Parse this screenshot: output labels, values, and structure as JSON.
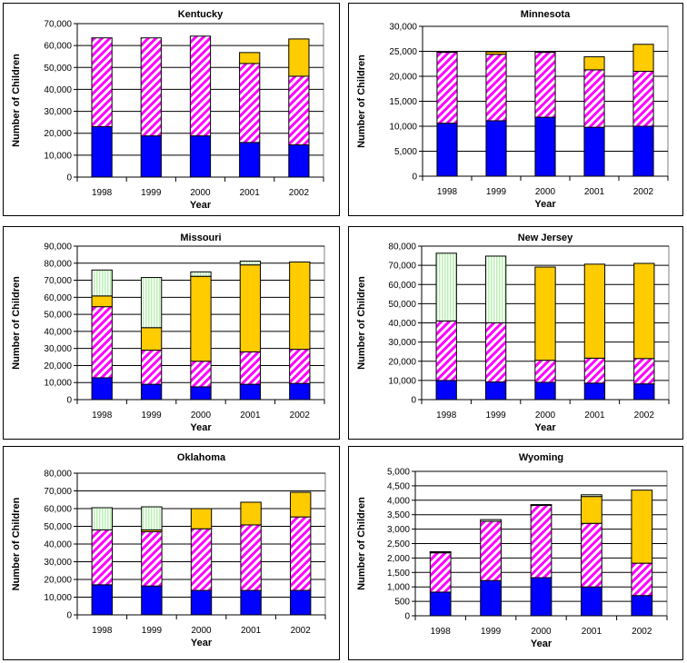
{
  "colors": {
    "series1": "#0000FF",
    "series2": "#FF00FF",
    "series3": "#FFCC00",
    "series4": "#CCFFCC"
  },
  "chart_data": [
    {
      "type": "bar",
      "stacked": true,
      "title": "Kentucky",
      "xlabel": "Year",
      "ylabel": "Number of Children",
      "categories": [
        "1998",
        "1999",
        "2000",
        "2001",
        "2002"
      ],
      "ylim": [
        0,
        70000
      ],
      "yticks": [
        0,
        10000,
        20000,
        30000,
        40000,
        50000,
        60000,
        70000
      ],
      "grid": true,
      "series": [
        {
          "values": [
            23000,
            18800,
            18800,
            15800,
            14700
          ]
        },
        {
          "values": [
            40500,
            44700,
            45500,
            36000,
            31300
          ]
        },
        {
          "values": [
            0,
            0,
            0,
            5000,
            17000
          ]
        },
        {
          "values": [
            0,
            0,
            0,
            0,
            0
          ]
        }
      ]
    },
    {
      "type": "bar",
      "stacked": true,
      "title": "Minnesota",
      "xlabel": "Year",
      "ylabel": "Number of Children",
      "categories": [
        "1998",
        "1999",
        "2000",
        "2001",
        "2002"
      ],
      "ylim": [
        0,
        30000
      ],
      "yticks": [
        0,
        5000,
        10000,
        15000,
        20000,
        25000,
        30000
      ],
      "grid": true,
      "series": [
        {
          "values": [
            10600,
            11100,
            11800,
            9800,
            10000
          ]
        },
        {
          "values": [
            14200,
            13300,
            13000,
            11500,
            11000
          ]
        },
        {
          "values": [
            100,
            500,
            100,
            2600,
            5400
          ]
        },
        {
          "values": [
            0,
            0,
            0,
            0,
            0
          ]
        }
      ]
    },
    {
      "type": "bar",
      "stacked": true,
      "title": "Missouri",
      "xlabel": "Year",
      "ylabel": "Number of Children",
      "categories": [
        "1998",
        "1999",
        "2000",
        "2001",
        "2002"
      ],
      "ylim": [
        0,
        90000
      ],
      "yticks": [
        0,
        10000,
        20000,
        30000,
        40000,
        50000,
        60000,
        70000,
        80000,
        90000
      ],
      "grid": true,
      "series": [
        {
          "values": [
            12800,
            9000,
            7500,
            9000,
            9500
          ]
        },
        {
          "values": [
            41700,
            20000,
            15000,
            19000,
            20000
          ]
        },
        {
          "values": [
            6300,
            13200,
            49800,
            51000,
            51200
          ]
        },
        {
          "values": [
            15200,
            29400,
            2600,
            2200,
            0
          ]
        }
      ]
    },
    {
      "type": "bar",
      "stacked": true,
      "title": "New Jersey",
      "xlabel": "Year",
      "ylabel": "Number of Children",
      "categories": [
        "1998",
        "1999",
        "2000",
        "2001",
        "2002"
      ],
      "ylim": [
        0,
        80000
      ],
      "yticks": [
        0,
        10000,
        20000,
        30000,
        40000,
        50000,
        60000,
        70000,
        80000
      ],
      "grid": true,
      "series": [
        {
          "values": [
            10000,
            9200,
            9000,
            8600,
            8200
          ]
        },
        {
          "values": [
            31000,
            30800,
            11500,
            13000,
            13200
          ]
        },
        {
          "values": [
            0,
            0,
            48600,
            49000,
            49600
          ]
        },
        {
          "values": [
            35300,
            34800,
            0,
            0,
            0
          ]
        }
      ]
    },
    {
      "type": "bar",
      "stacked": true,
      "title": "Oklahoma",
      "xlabel": "Year",
      "ylabel": "Number of Children",
      "categories": [
        "1998",
        "1999",
        "2000",
        "2001",
        "2002"
      ],
      "ylim": [
        0,
        80000
      ],
      "yticks": [
        0,
        10000,
        20000,
        30000,
        40000,
        50000,
        60000,
        70000,
        80000
      ],
      "grid": true,
      "series": [
        {
          "values": [
            17000,
            16300,
            13800,
            13800,
            13800
          ]
        },
        {
          "values": [
            31000,
            30700,
            34800,
            37000,
            41500
          ]
        },
        {
          "values": [
            0,
            1000,
            11400,
            12800,
            13900
          ]
        },
        {
          "values": [
            12500,
            13000,
            0,
            0,
            0
          ]
        }
      ]
    },
    {
      "type": "bar",
      "stacked": true,
      "title": "Wyoming",
      "xlabel": "Year",
      "ylabel": "Number of Children",
      "categories": [
        "1998",
        "1999",
        "2000",
        "2001",
        "2002"
      ],
      "ylim": [
        0,
        5000
      ],
      "yticks": [
        0,
        500,
        1000,
        1500,
        2000,
        2500,
        3000,
        3500,
        4000,
        4500,
        5000
      ],
      "grid": true,
      "series": [
        {
          "values": [
            820,
            1220,
            1320,
            1000,
            700
          ]
        },
        {
          "values": [
            1360,
            2050,
            2500,
            2200,
            1120
          ]
        },
        {
          "values": [
            30,
            0,
            30,
            930,
            2530
          ]
        },
        {
          "values": [
            10,
            60,
            0,
            60,
            0
          ]
        }
      ]
    }
  ]
}
